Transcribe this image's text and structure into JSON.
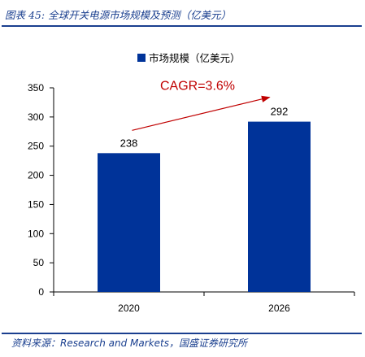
{
  "header": {
    "title": "图表 45:  全球开关电源市场规模及预测（亿美元）"
  },
  "footer": {
    "source": "资料来源：Research and Markets，国盛证券研究所"
  },
  "colors": {
    "bar": "#003399",
    "accent": "#1a3f8f",
    "annotation": "#c00000"
  },
  "chart_data": {
    "type": "bar",
    "categories": [
      "2020",
      "2026"
    ],
    "series": [
      {
        "name": "市场规模（亿美元）",
        "values": [
          238,
          292
        ]
      }
    ],
    "ylim": [
      0,
      350
    ],
    "yticks": [
      0,
      50,
      100,
      150,
      200,
      250,
      300,
      350
    ],
    "legend_position": "top-center",
    "grid": false,
    "annotation": {
      "text": "CAGR=3.6%",
      "from": "2020",
      "to": "2026"
    }
  }
}
